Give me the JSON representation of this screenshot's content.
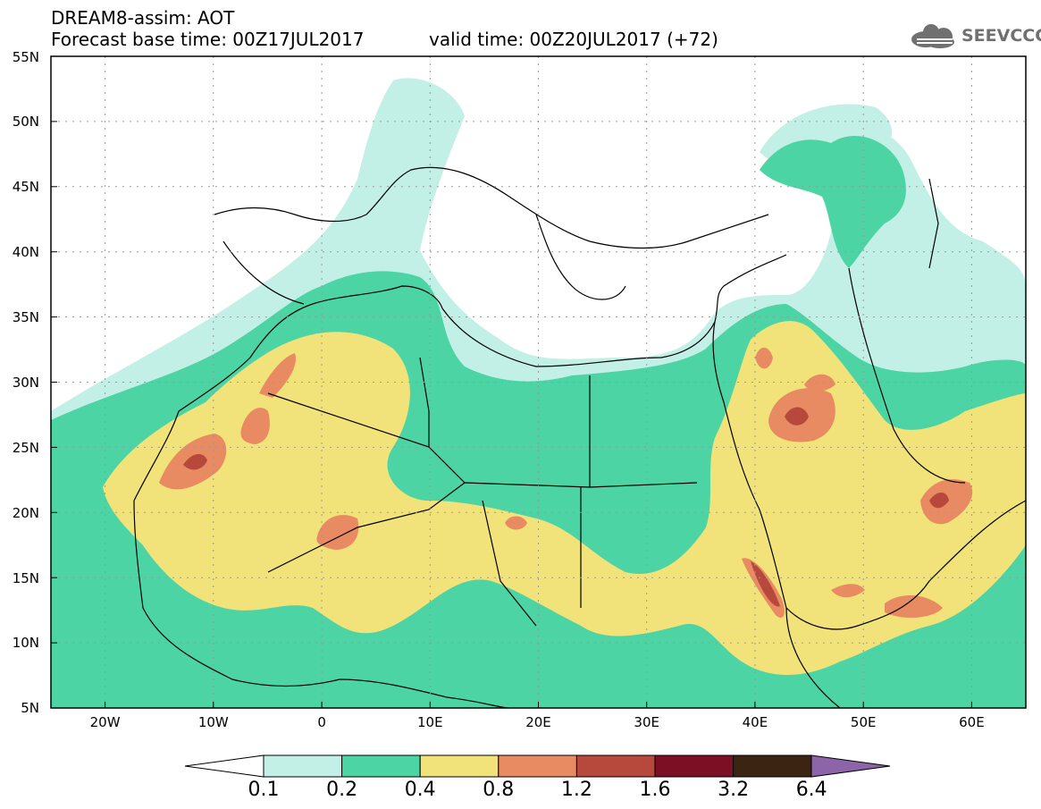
{
  "header": {
    "title": "DREAM8-assim: AOT",
    "base_time": "Forecast base time: 00Z17JUL2017",
    "valid_time": "valid time: 00Z20JUL2017 (+72)",
    "logo_text": "SEEVCCC"
  },
  "map": {
    "lon_range": [
      -25,
      65
    ],
    "lat_range": [
      5,
      55
    ],
    "lat_labels": [
      "55N",
      "50N",
      "45N",
      "40N",
      "35N",
      "30N",
      "25N",
      "20N",
      "15N",
      "10N",
      "5N"
    ],
    "lon_labels": [
      "20W",
      "10W",
      "0",
      "10E",
      "20E",
      "30E",
      "40E",
      "50E",
      "60E"
    ],
    "grid": true
  },
  "colorbar": {
    "levels": [
      "0.1",
      "0.2",
      "0.4",
      "0.8",
      "1.2",
      "1.6",
      "3.2",
      "6.4"
    ],
    "colors": [
      "#ffffff",
      "#c3f0e6",
      "#4dd4a4",
      "#f2e27a",
      "#e88a62",
      "#b7493c",
      "#7d0f24",
      "#3c2412",
      "#8c64a8"
    ]
  }
}
